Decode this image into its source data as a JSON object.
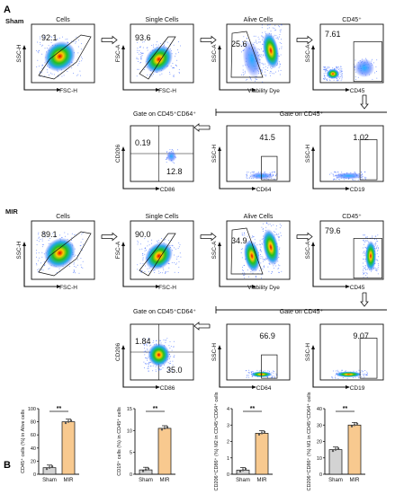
{
  "panel_a": {
    "letter": "A",
    "sham": {
      "group": "Sham",
      "row1": [
        {
          "title": "Cells",
          "pct": "92.1",
          "xlabel": "FSC-H",
          "ylabel": "SSC-H"
        },
        {
          "title": "Single Cells",
          "pct": "93.6",
          "xlabel": "FSC-H",
          "ylabel": "FSC-A"
        },
        {
          "title": "Alive Cells",
          "pct": "25.6",
          "xlabel": "Viability Dye",
          "ylabel": "SSC-A"
        },
        {
          "title": "CD45⁺",
          "pct": "7.61",
          "xlabel": "CD45",
          "ylabel": "SSC-A"
        }
      ],
      "gate_headers": [
        "Gate on CD45⁺CD64⁺",
        "Gate on CD45⁺"
      ],
      "row2": [
        {
          "q1": "0.19",
          "q4": "12.8",
          "xlabel": "CD86",
          "ylabel": "CD206"
        },
        {
          "pct": "41.5",
          "xlabel": "CD64",
          "ylabel": "SSC-H"
        },
        {
          "pct": "1.02",
          "xlabel": "CD19",
          "ylabel": "SSC-H"
        }
      ]
    },
    "mir": {
      "group": "MIR",
      "row1": [
        {
          "title": "Cells",
          "pct": "89.1",
          "xlabel": "FSC-H",
          "ylabel": "SSC-H"
        },
        {
          "title": "Single Cells",
          "pct": "90.0",
          "xlabel": "FSC-H",
          "ylabel": "FSC-A"
        },
        {
          "title": "Alive Cells",
          "pct": "34.9",
          "xlabel": "Viability Dye",
          "ylabel": "SSC-A"
        },
        {
          "title": "CD45⁺",
          "pct": "79.6",
          "xlabel": "CD45",
          "ylabel": "SSC-A"
        }
      ],
      "gate_headers": [
        "Gate on CD45⁺CD64⁺",
        "Gate on CD45⁺"
      ],
      "row2": [
        {
          "q1": "1.84",
          "q4": "35.0",
          "xlabel": "CD86",
          "ylabel": "CD206"
        },
        {
          "pct": "66.9",
          "xlabel": "CD64",
          "ylabel": "SSC-H"
        },
        {
          "pct": "9.07",
          "xlabel": "CD19",
          "ylabel": "SSC-H"
        }
      ]
    }
  },
  "panel_b": {
    "letter": "B"
  },
  "chart_data": [
    {
      "type": "bar",
      "categories": [
        "Sham",
        "MIR"
      ],
      "values": [
        10,
        80
      ],
      "ylabel": "CD45⁺ cells (%) in Alive cells",
      "ylim": [
        0,
        100
      ],
      "yticks": [
        0,
        20,
        40,
        60,
        80,
        100
      ],
      "significance": "**"
    },
    {
      "type": "bar",
      "categories": [
        "Sham",
        "MIR"
      ],
      "values": [
        1,
        10.5
      ],
      "ylabel": "CD19⁺ cells (%) in CD45⁺ cells",
      "ylim": [
        0,
        15
      ],
      "yticks": [
        0,
        5,
        10,
        15
      ],
      "significance": "**"
    },
    {
      "type": "bar",
      "categories": [
        "Sham",
        "MIR"
      ],
      "values": [
        0.25,
        2.5
      ],
      "ylabel": "CD206⁺CD86⁺ (%) M2 in CD45⁺CD64⁺ cells",
      "ylim": [
        0,
        4
      ],
      "yticks": [
        0,
        1,
        2,
        3,
        4
      ],
      "significance": "**"
    },
    {
      "type": "bar",
      "categories": [
        "Sham",
        "MIR"
      ],
      "values": [
        15,
        30
      ],
      "ylabel": "CD206⁺CD86⁺ (%) M1 in CD45⁺CD64⁺ cells",
      "ylim": [
        0,
        40
      ],
      "yticks": [
        0,
        10,
        20,
        30,
        40
      ],
      "significance": "**"
    }
  ],
  "colors": {
    "sham_bar": "#d3d3d3",
    "mir_bar": "#f8c98f"
  }
}
